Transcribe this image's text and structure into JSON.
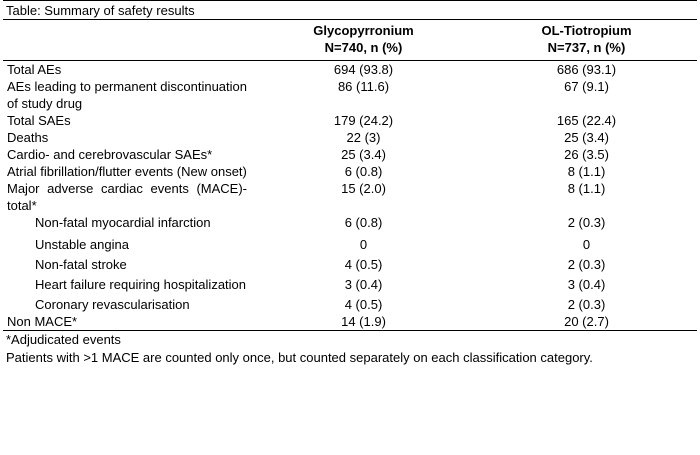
{
  "caption": "Table: Summary of safety results",
  "columns": [
    {
      "line1": "",
      "line2": ""
    },
    {
      "line1": "Glycopyrronium",
      "line2": "N=740, n (%)"
    },
    {
      "line1": "OL-Tiotropium",
      "line2": "N=737, n (%)"
    }
  ],
  "rows": [
    {
      "label": "Total AEs",
      "glyco": "694 (93.8)",
      "tio": "686 (93.1)"
    },
    {
      "label": "AEs leading to permanent discontinuation of study drug",
      "glyco": "86 (11.6)",
      "tio": "67 (9.1)"
    },
    {
      "label": "Total SAEs",
      "glyco": "179 (24.2)",
      "tio": "165 (22.4)"
    },
    {
      "label": "Deaths",
      "glyco": "22 (3)",
      "tio": "25 (3.4)"
    },
    {
      "label": "Cardio- and cerebrovascular SAEs*",
      "glyco": "25 (3.4)",
      "tio": "26 (3.5)"
    },
    {
      "label": "Atrial fibrillation/flutter events (New onset)",
      "glyco": "6 (0.8)",
      "tio": "8 (1.1)"
    },
    {
      "label": "Major adverse cardiac events (MACE)-total*",
      "glyco": "15 (2.0)",
      "tio": "8 (1.1)"
    },
    {
      "label": "Non-fatal myocardial infarction",
      "glyco": "6 (0.8)",
      "tio": "2 (0.3)"
    },
    {
      "label": "Unstable angina",
      "glyco": "0",
      "tio": "0"
    },
    {
      "label": "Non-fatal stroke",
      "glyco": "4 (0.5)",
      "tio": "2 (0.3)"
    },
    {
      "label": "Heart failure requiring hospitalization",
      "glyco": "3 (0.4)",
      "tio": "3 (0.4)"
    },
    {
      "label": "Coronary revascularisation",
      "glyco": "4 (0.5)",
      "tio": "2 (0.3)"
    },
    {
      "label": "Non MACE*",
      "glyco": "14 (1.9)",
      "tio": "20 (2.7)"
    }
  ],
  "footnotes": {
    "adjudicated": "*Adjudicated events",
    "counting": "Patients with >1 MACE are counted only once, but counted separately on each classification category."
  }
}
